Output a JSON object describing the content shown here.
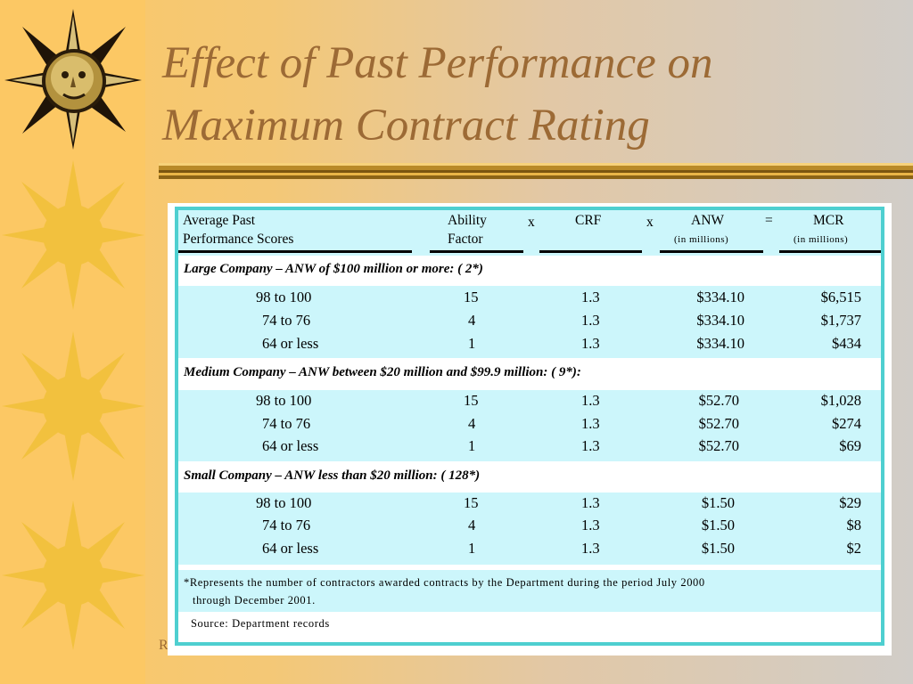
{
  "title": {
    "line1": "Effect of Past Performance on",
    "line2": "Maximum Contract Rating"
  },
  "footer_fragment": "R",
  "colors": {
    "sidebar": "#fcc864",
    "sun": "#f2c13e",
    "title": "#9c6a35",
    "table_border": "#4ecfd0",
    "table_fill": "#ccf6fb"
  },
  "decorations": {
    "sidebar_icons": [
      "sun-face-icon",
      "sun-icon",
      "sun-icon",
      "sun-icon"
    ]
  },
  "table": {
    "headers": {
      "col1_line1": "Average Past",
      "col1_line2": "Performance Scores",
      "col2_line1": "Ability",
      "col2_line2": "Factor",
      "op1": "x",
      "col3": "CRF",
      "op2": "x",
      "col4_line1": "ANW",
      "col4_line2": "(in millions)",
      "op3": "=",
      "col5_line1": "MCR",
      "col5_line2": "(in millions)"
    },
    "sections": [
      {
        "label": "Large Company – ANW of $100 million or more:    ( 2*)",
        "rows": [
          {
            "score": "98 to 100",
            "ability": "15",
            "crf": "1.3",
            "anw": "$334.10",
            "mcr": "$6,515"
          },
          {
            "score": "74 to 76",
            "ability": "4",
            "crf": "1.3",
            "anw": "$334.10",
            "mcr": "$1,737"
          },
          {
            "score": "64 or less",
            "ability": "1",
            "crf": "1.3",
            "anw": "$334.10",
            "mcr": "$434"
          }
        ]
      },
      {
        "label": "Medium Company – ANW between $20 million and $99.9 million:    ( 9*):",
        "rows": [
          {
            "score": "98 to 100",
            "ability": "15",
            "crf": "1.3",
            "anw": "$52.70",
            "mcr": "$1,028"
          },
          {
            "score": "74 to 76",
            "ability": "4",
            "crf": "1.3",
            "anw": "$52.70",
            "mcr": "$274"
          },
          {
            "score": "64 or less",
            "ability": "1",
            "crf": "1.3",
            "anw": "$52.70",
            "mcr": "$69"
          }
        ]
      },
      {
        "label": "Small Company – ANW less than $20 million:    ( 128*)",
        "rows": [
          {
            "score": "98 to 100",
            "ability": "15",
            "crf": "1.3",
            "anw": "$1.50",
            "mcr": "$29"
          },
          {
            "score": "74 to 76",
            "ability": "4",
            "crf": "1.3",
            "anw": "$1.50",
            "mcr": "$8"
          },
          {
            "score": "64 or less",
            "ability": "1",
            "crf": "1.3",
            "anw": "$1.50",
            "mcr": "$2"
          }
        ]
      }
    ],
    "footnote_line1": "*Represents the number of contractors awarded contracts by the Department during the period  July 2000",
    "footnote_line2": "through  December 2001.",
    "source": "Source:  Department records"
  }
}
